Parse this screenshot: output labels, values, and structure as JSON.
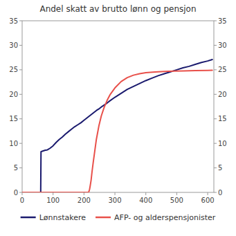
{
  "chart_data": {
    "type": "line",
    "title": "Andel skatt av brutto lønn og pensjon",
    "xlim": [
      0,
      620
    ],
    "ylim": [
      0,
      35
    ],
    "xticks": [
      0,
      100,
      200,
      300,
      400,
      500,
      600
    ],
    "yticks": [
      0,
      5,
      10,
      15,
      20,
      25,
      30,
      35
    ],
    "y2lim": [
      0,
      35
    ],
    "y2ticks": [
      0,
      5,
      10,
      15,
      20,
      25,
      30,
      35
    ],
    "grid": false,
    "legend": "bottom",
    "series": [
      {
        "name": "Lønnstakere",
        "color": "#1a1a6e",
        "x": [
          0,
          60,
          61,
          65,
          70,
          75,
          80,
          82,
          83,
          90,
          100,
          110,
          120,
          130,
          140,
          150,
          160,
          170,
          180,
          190,
          200,
          210,
          220,
          230,
          240,
          250,
          260,
          270,
          280,
          300,
          320,
          340,
          360,
          380,
          400,
          420,
          440,
          460,
          480,
          500,
          520,
          540,
          560,
          580,
          600,
          615
        ],
        "values": [
          0,
          0,
          8.3,
          8.4,
          8.5,
          8.6,
          8.65,
          8.7,
          8.72,
          9.0,
          9.5,
          10.2,
          10.8,
          11.3,
          11.9,
          12.4,
          12.9,
          13.4,
          13.8,
          14.2,
          14.7,
          15.2,
          15.7,
          16.2,
          16.7,
          17.1,
          17.6,
          18.0,
          18.5,
          19.4,
          20.2,
          21.0,
          21.6,
          22.2,
          22.8,
          23.3,
          23.8,
          24.2,
          24.6,
          25.0,
          25.4,
          25.7,
          26.1,
          26.5,
          26.8,
          27.1
        ]
      },
      {
        "name": "AFP- og alderspensjonister",
        "color": "#e8504a",
        "x": [
          0,
          215,
          216,
          218,
          220,
          223,
          226,
          230,
          235,
          240,
          248,
          256,
          265,
          275,
          285,
          300,
          320,
          340,
          360,
          380,
          400,
          430,
          460,
          490,
          520,
          560,
          600,
          615
        ],
        "values": [
          0,
          0,
          0.2,
          0.6,
          1.3,
          2.5,
          4.2,
          6.2,
          8.5,
          10.8,
          13.5,
          15.6,
          17.3,
          18.8,
          20.0,
          21.3,
          22.6,
          23.4,
          23.9,
          24.2,
          24.4,
          24.55,
          24.65,
          24.72,
          24.77,
          24.83,
          24.87,
          24.9
        ]
      }
    ]
  }
}
